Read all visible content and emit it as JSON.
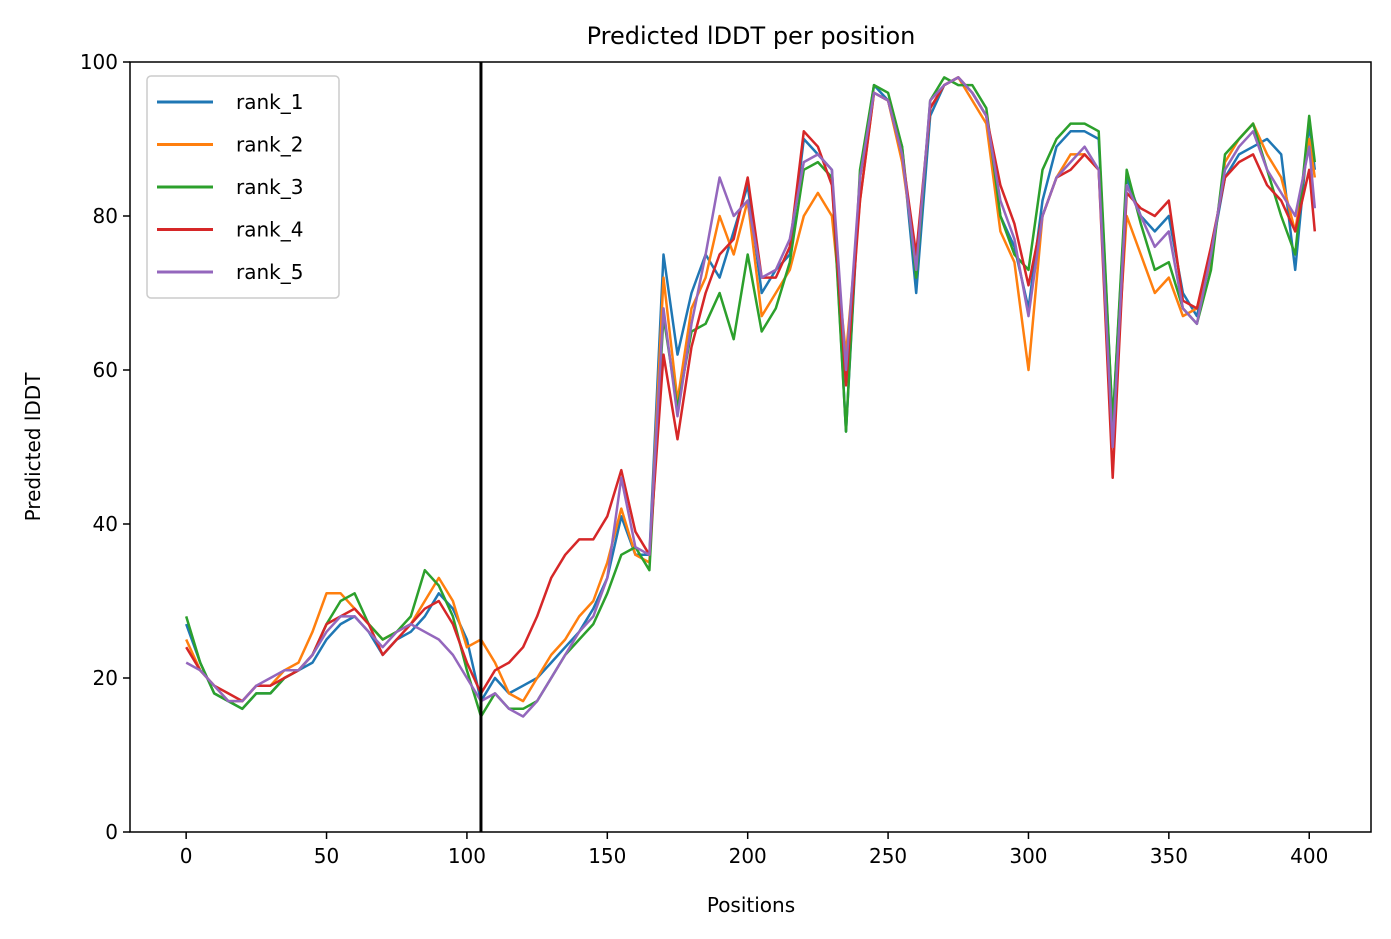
{
  "chart_data": {
    "type": "line",
    "title": "Predicted lDDT per position",
    "xlabel": "Positions",
    "ylabel": "Predicted lDDT",
    "xlim": [
      -20,
      422
    ],
    "ylim": [
      0,
      100
    ],
    "xticks": [
      0,
      50,
      100,
      150,
      200,
      250,
      300,
      350,
      400
    ],
    "yticks": [
      0,
      20,
      40,
      60,
      80,
      100
    ],
    "grid": false,
    "legend_position": "upper-left",
    "vline_x": 105,
    "vline_color": "#000000",
    "x": [
      0,
      5,
      10,
      15,
      20,
      25,
      30,
      35,
      40,
      45,
      50,
      55,
      60,
      65,
      70,
      75,
      80,
      85,
      90,
      95,
      100,
      105,
      110,
      115,
      120,
      125,
      130,
      135,
      140,
      145,
      150,
      155,
      160,
      165,
      170,
      175,
      180,
      185,
      190,
      195,
      200,
      205,
      210,
      215,
      220,
      225,
      230,
      235,
      240,
      245,
      250,
      255,
      260,
      265,
      270,
      275,
      280,
      285,
      290,
      295,
      300,
      305,
      310,
      315,
      320,
      325,
      330,
      335,
      340,
      345,
      350,
      355,
      360,
      365,
      370,
      375,
      380,
      385,
      390,
      395,
      400,
      402
    ],
    "series": [
      {
        "name": "rank_1",
        "color": "#1f77b4",
        "values": [
          27,
          22,
          18,
          17,
          16,
          18,
          18,
          20,
          21,
          22,
          25,
          27,
          28,
          26,
          23,
          25,
          26,
          28,
          31,
          29,
          25,
          17,
          20,
          18,
          19,
          20,
          22,
          24,
          26,
          29,
          33,
          41,
          36,
          36,
          75,
          62,
          70,
          75,
          72,
          78,
          84,
          70,
          73,
          75,
          90,
          88,
          86,
          52,
          85,
          97,
          95,
          89,
          70,
          93,
          97,
          98,
          96,
          93,
          80,
          76,
          68,
          82,
          89,
          91,
          91,
          90,
          53,
          85,
          80,
          78,
          80,
          70,
          67,
          75,
          85,
          88,
          89,
          90,
          88,
          73,
          92,
          86
        ]
      },
      {
        "name": "rank_2",
        "color": "#ff7f0e",
        "values": [
          25,
          21,
          19,
          17,
          17,
          19,
          19,
          21,
          22,
          26,
          31,
          31,
          29,
          27,
          25,
          26,
          27,
          30,
          33,
          30,
          24,
          25,
          22,
          18,
          17,
          20,
          23,
          25,
          28,
          30,
          35,
          42,
          36,
          35,
          72,
          56,
          68,
          72,
          80,
          75,
          82,
          67,
          70,
          73,
          80,
          83,
          80,
          62,
          82,
          96,
          95,
          87,
          74,
          94,
          97,
          98,
          95,
          92,
          78,
          74,
          60,
          80,
          85,
          88,
          88,
          86,
          52,
          80,
          75,
          70,
          72,
          67,
          68,
          74,
          87,
          90,
          92,
          88,
          85,
          78,
          90,
          85
        ]
      },
      {
        "name": "rank_3",
        "color": "#2ca02c",
        "values": [
          28,
          22,
          18,
          17,
          16,
          18,
          18,
          20,
          21,
          23,
          27,
          30,
          31,
          27,
          25,
          26,
          28,
          34,
          32,
          28,
          21,
          15,
          18,
          16,
          16,
          17,
          20,
          23,
          25,
          27,
          31,
          36,
          37,
          34,
          67,
          55,
          65,
          66,
          70,
          64,
          75,
          65,
          68,
          74,
          86,
          87,
          85,
          52,
          86,
          97,
          96,
          89,
          72,
          95,
          98,
          97,
          97,
          94,
          80,
          75,
          73,
          86,
          90,
          92,
          92,
          91,
          53,
          86,
          79,
          73,
          74,
          68,
          66,
          73,
          88,
          90,
          92,
          86,
          80,
          75,
          93,
          87
        ]
      },
      {
        "name": "rank_4",
        "color": "#d62728",
        "values": [
          24,
          21,
          19,
          18,
          17,
          19,
          19,
          20,
          21,
          23,
          27,
          28,
          29,
          27,
          23,
          25,
          27,
          29,
          30,
          27,
          22,
          18,
          21,
          22,
          24,
          28,
          33,
          36,
          38,
          38,
          41,
          47,
          39,
          36,
          62,
          51,
          63,
          70,
          75,
          77,
          85,
          72,
          72,
          76,
          91,
          89,
          84,
          58,
          82,
          96,
          95,
          88,
          75,
          94,
          97,
          98,
          96,
          93,
          84,
          79,
          71,
          80,
          85,
          86,
          88,
          86,
          46,
          83,
          81,
          80,
          82,
          69,
          68,
          76,
          85,
          87,
          88,
          84,
          82,
          78,
          86,
          78
        ]
      },
      {
        "name": "rank_5",
        "color": "#9467bd",
        "values": [
          22,
          21,
          19,
          17,
          17,
          19,
          20,
          21,
          21,
          23,
          26,
          28,
          28,
          26,
          24,
          26,
          27,
          26,
          25,
          23,
          20,
          17,
          18,
          16,
          15,
          17,
          20,
          23,
          26,
          28,
          33,
          46,
          37,
          36,
          68,
          54,
          66,
          75,
          85,
          80,
          82,
          72,
          73,
          77,
          87,
          88,
          86,
          60,
          85,
          96,
          95,
          88,
          73,
          95,
          97,
          98,
          96,
          93,
          82,
          77,
          67,
          80,
          85,
          87,
          89,
          86,
          50,
          84,
          80,
          76,
          78,
          68,
          66,
          75,
          86,
          89,
          91,
          86,
          83,
          80,
          89,
          81
        ]
      }
    ]
  }
}
